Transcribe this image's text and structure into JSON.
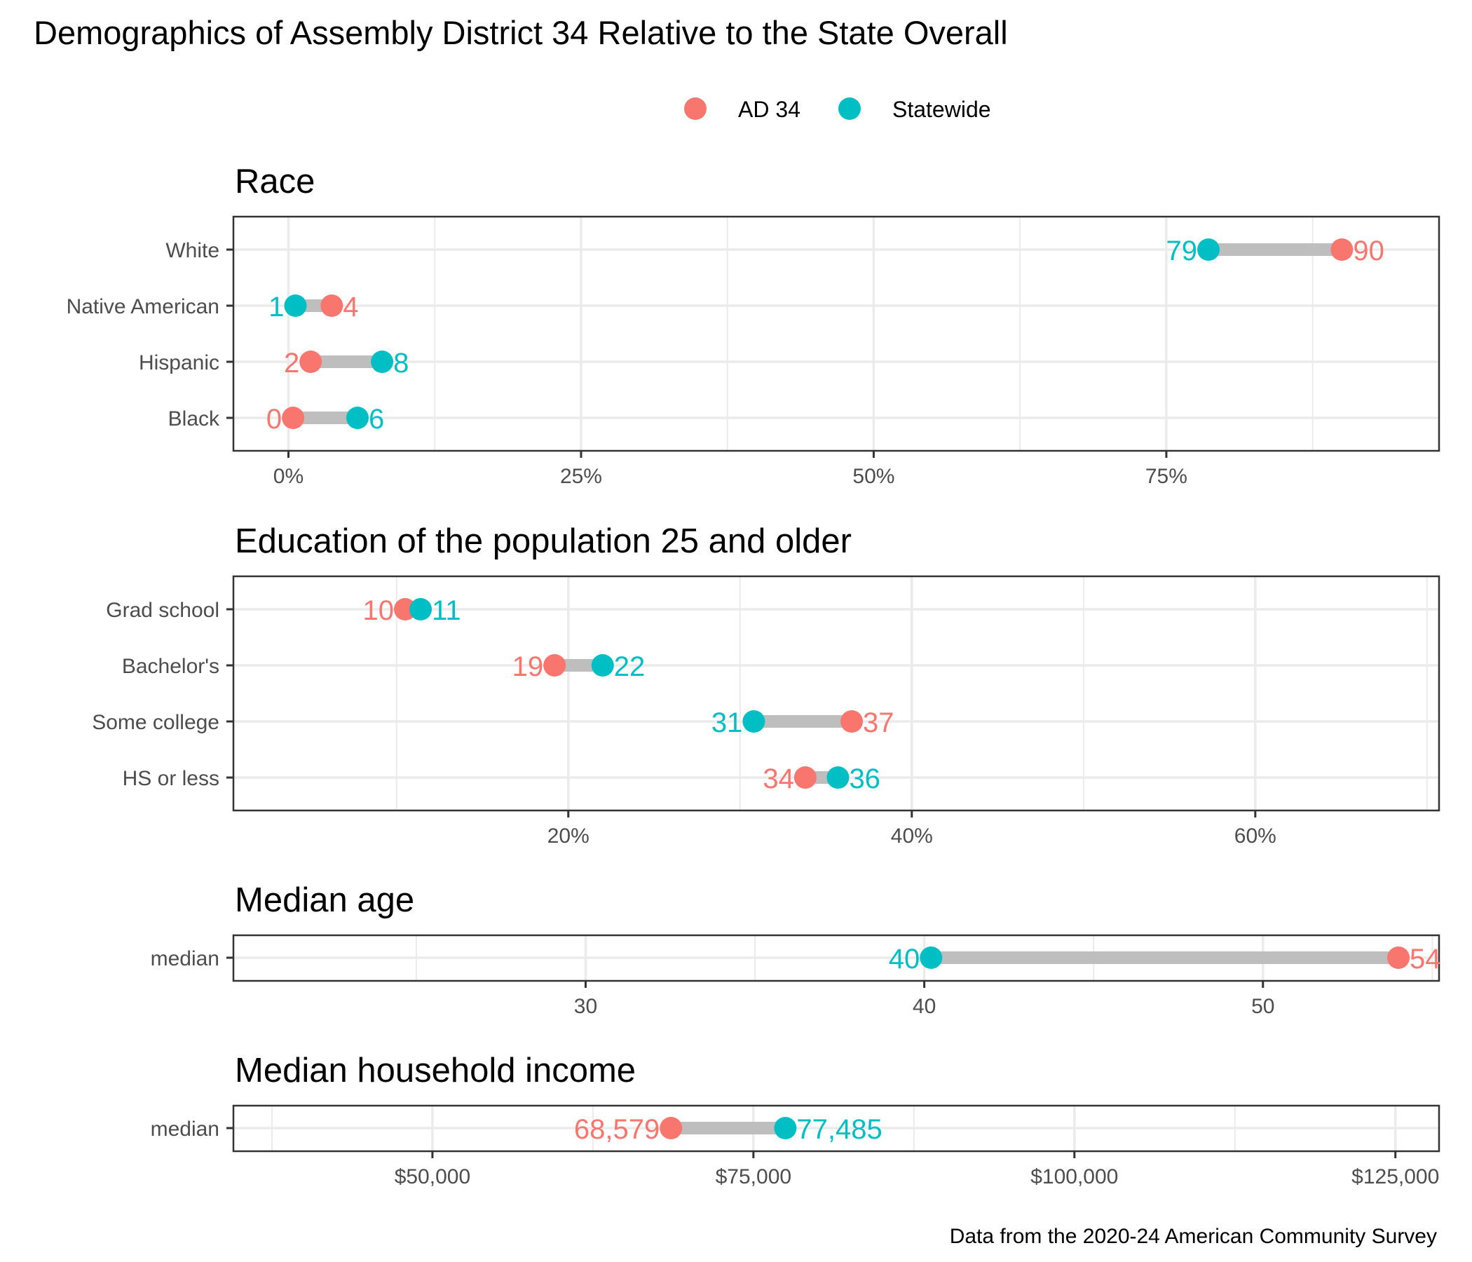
{
  "chart_data": {
    "type": "dumbbell",
    "title": "Demographics of Assembly District 34 Relative to the State Overall",
    "caption": "Data from the 2020-24 American Community Survey",
    "legend": {
      "position": "top",
      "entries": [
        {
          "name": "AD 34",
          "color": "#F8766D"
        },
        {
          "name": "Statewide",
          "color": "#00BFC4"
        }
      ]
    },
    "colors": {
      "ad34": "#F8766D",
      "statewide": "#00BFC4",
      "segment": "#BEBEBE",
      "grid": "#EBEBEB",
      "border": "#333333"
    },
    "panels": [
      {
        "id": "race",
        "title": "Race",
        "xlim": [
          -4.7,
          98.3
        ],
        "major_ticks": [
          0,
          25,
          50,
          75
        ],
        "minor_ticks": [
          12.5,
          37.5,
          62.5,
          87.5
        ],
        "tick_labels": [
          "0%",
          "25%",
          "50%",
          "75%"
        ],
        "categories": [
          "White",
          "Native American",
          "Hispanic",
          "Black"
        ],
        "series": [
          {
            "name": "AD 34",
            "values": [
              90.0,
              3.7,
              1.9,
              0.4
            ],
            "labels": [
              "90",
              "4",
              "2",
              "0"
            ]
          },
          {
            "name": "Statewide",
            "values": [
              78.6,
              0.6,
              8.0,
              5.9
            ],
            "labels": [
              "79",
              "1",
              "8",
              "6"
            ]
          }
        ]
      },
      {
        "id": "education",
        "title": "Education of the population 25 and older",
        "xlim": [
          0.5,
          70.7
        ],
        "major_ticks": [
          20,
          40,
          60
        ],
        "minor_ticks": [
          10,
          30,
          50,
          70
        ],
        "tick_labels": [
          "20%",
          "40%",
          "60%"
        ],
        "categories": [
          "Grad school",
          "Bachelor's",
          "Some college",
          "HS or less"
        ],
        "series": [
          {
            "name": "AD 34",
            "values": [
              10.5,
              19.2,
              36.5,
              33.8
            ],
            "labels": [
              "10",
              "19",
              "37",
              "34"
            ]
          },
          {
            "name": "Statewide",
            "values": [
              11.4,
              22.0,
              30.8,
              35.7
            ],
            "labels": [
              "11",
              "22",
              "31",
              "36"
            ]
          }
        ]
      },
      {
        "id": "age",
        "title": "Median age",
        "xlim": [
          19.6,
          55.2
        ],
        "major_ticks": [
          30,
          40,
          50
        ],
        "minor_ticks": [
          25,
          35,
          45,
          55
        ],
        "tick_labels": [
          "30",
          "40",
          "50"
        ],
        "categories": [
          "median"
        ],
        "series": [
          {
            "name": "AD 34",
            "values": [
              54.0
            ],
            "labels": [
              "54"
            ]
          },
          {
            "name": "Statewide",
            "values": [
              40.2
            ],
            "labels": [
              "40"
            ]
          }
        ]
      },
      {
        "id": "income",
        "title": "Median household income",
        "xlim": [
          34500,
          128400
        ],
        "major_ticks": [
          50000,
          75000,
          100000,
          125000
        ],
        "minor_ticks": [
          37500,
          62500,
          87500,
          112500
        ],
        "tick_labels": [
          "$50,000",
          "$75,000",
          "$100,000",
          "$125,000"
        ],
        "categories": [
          "median"
        ],
        "series": [
          {
            "name": "AD 34",
            "values": [
              68579
            ],
            "labels": [
              "68,579"
            ]
          },
          {
            "name": "Statewide",
            "values": [
              77485
            ],
            "labels": [
              "77,485"
            ]
          }
        ]
      }
    ]
  }
}
